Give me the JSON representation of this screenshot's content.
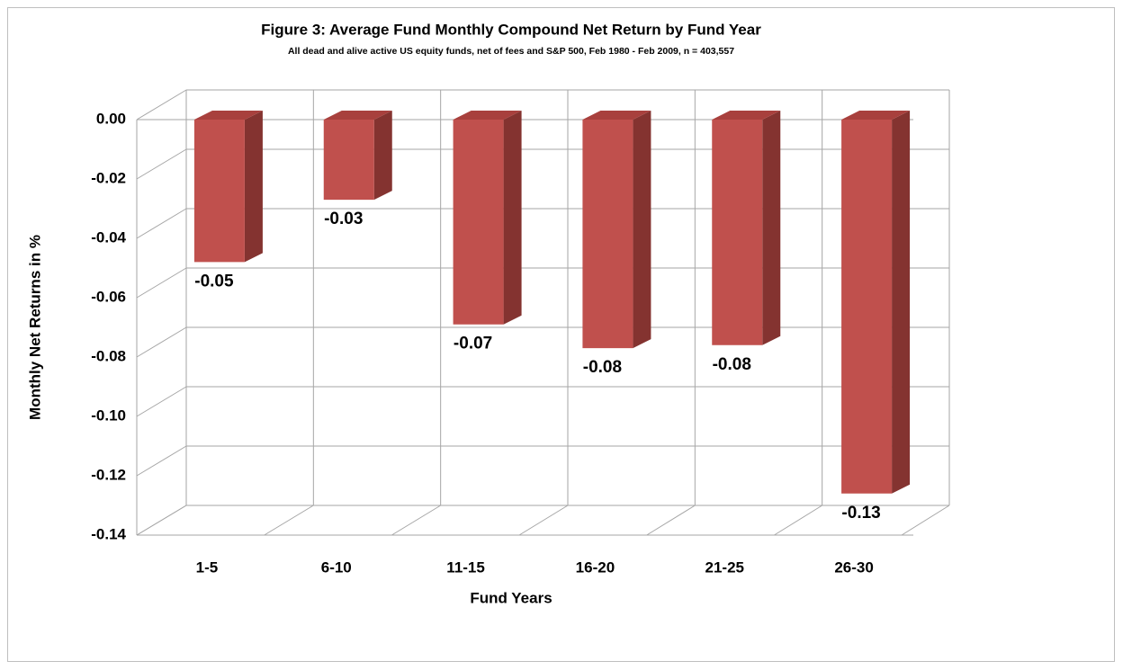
{
  "chart_data": {
    "type": "bar",
    "title": "Figure 3: Average Fund Monthly Compound Net Return by Fund Year",
    "subtitle": "All  dead and alive active US  equity funds, net of fees and S&P 500, Feb  1980 -  Feb 2009,  n = 403,557",
    "x_label": "Fund Years",
    "y_label": "Monthly Net Returns in %",
    "categories": [
      "1-5",
      "6-10",
      "11-15",
      "16-20",
      "21-25",
      "26-30"
    ],
    "values": [
      -0.048,
      -0.027,
      -0.069,
      -0.077,
      -0.076,
      -0.126
    ],
    "value_labels": [
      "-0.05",
      "-0.03",
      "-0.07",
      "-0.08",
      "-0.08",
      "-0.13"
    ],
    "color": "#c0504d",
    "ylim": [
      -0.14,
      0
    ],
    "yticks": [
      {
        "value": 0,
        "label": "0.00"
      },
      {
        "value": -0.02,
        "label": "-0.02"
      },
      {
        "value": -0.04,
        "label": "-0.04"
      },
      {
        "value": -0.06,
        "label": "-0.06"
      },
      {
        "value": -0.08,
        "label": "-0.08"
      },
      {
        "value": -0.1,
        "label": "-0.10"
      },
      {
        "value": -0.12,
        "label": "-0.12"
      },
      {
        "value": -0.14,
        "label": "-0.14"
      }
    ],
    "grid": true
  }
}
